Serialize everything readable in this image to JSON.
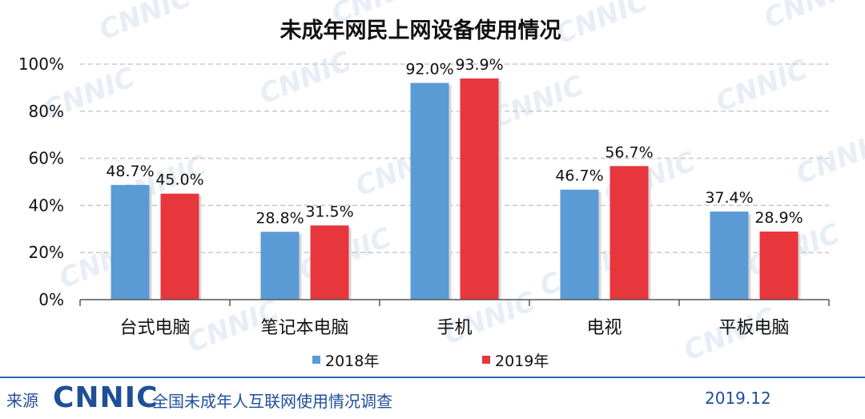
{
  "chart_data": {
    "type": "bar",
    "title": "未成年网民上网设备使用情况",
    "categories": [
      "台式电脑",
      "笔记本电脑",
      "手机",
      "电视",
      "平板电脑"
    ],
    "series": [
      {
        "name": "2018年",
        "color": "#5b9bd5",
        "values": [
          48.7,
          28.8,
          92.0,
          46.7,
          37.4
        ],
        "labels": [
          "48.7%",
          "28.8%",
          "92.0%",
          "46.7%",
          "37.4%"
        ]
      },
      {
        "name": "2019年",
        "color": "#e8363d",
        "values": [
          45.0,
          31.5,
          93.9,
          56.7,
          28.9
        ],
        "labels": [
          "45.0%",
          "31.5%",
          "93.9%",
          "56.7%",
          "28.9%"
        ]
      }
    ],
    "y_ticks": [
      "0%",
      "20%",
      "40%",
      "60%",
      "80%",
      "100%"
    ],
    "ylim": [
      0,
      100
    ],
    "grid": true,
    "legend_position": "bottom"
  },
  "watermark": "CNNIC",
  "footer": {
    "source_label": "来源",
    "logo_text": "CNNIC",
    "report_title": "全国未成年人互联网使用情况调查",
    "date": "2019.12"
  }
}
